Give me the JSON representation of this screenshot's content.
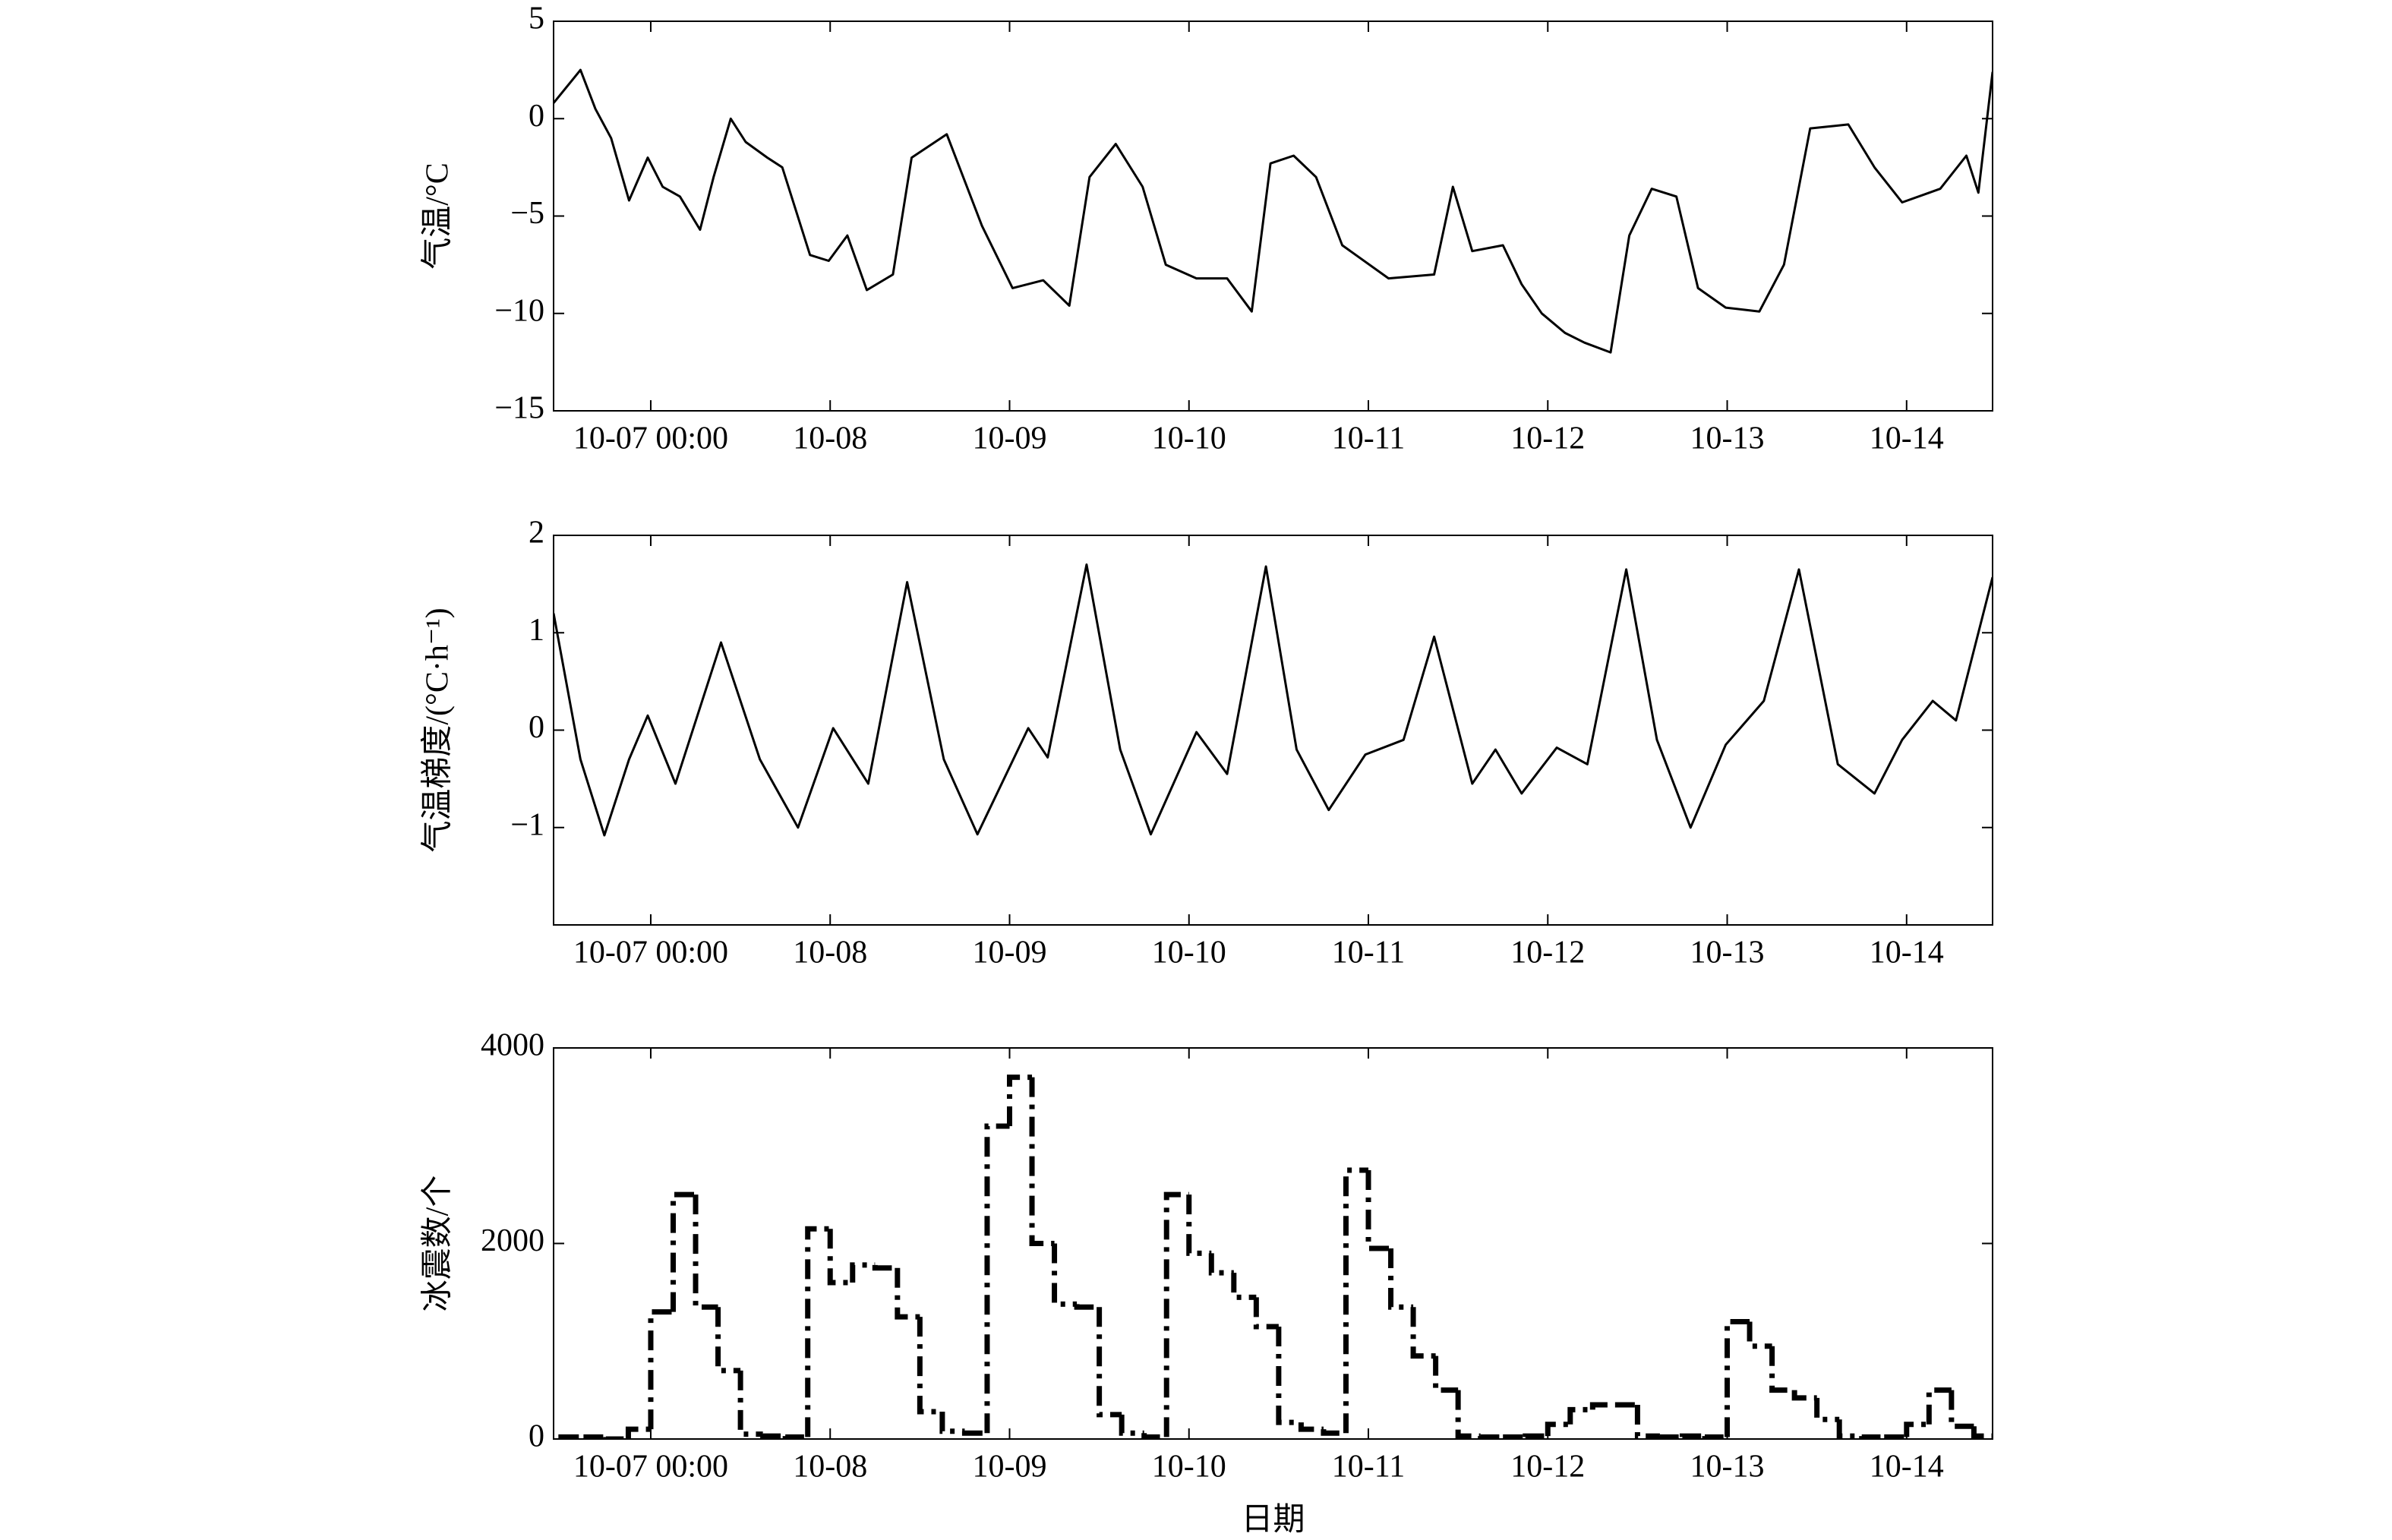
{
  "chart_data": [
    {
      "type": "line",
      "ylabel": "气温/°C",
      "color": "#000000",
      "x": [
        -13,
        -9.4,
        -7.4,
        -5.3,
        -2.9,
        -0.4,
        1.6,
        3.9,
        6.6,
        8.4,
        10.7,
        12.7,
        15.6,
        17.6,
        21.3,
        23.8,
        26.3,
        28.9,
        32.4,
        34.9,
        39.6,
        44.3,
        48.4,
        52.5,
        56,
        58.7,
        62.2,
        65.8,
        68.9,
        73,
        77.1,
        80.4,
        82.9,
        86,
        89,
        92.5,
        98.7,
        104.8,
        107.3,
        109.9,
        114,
        116.5,
        119.2,
        122.3,
        124.9,
        128.4,
        130.9,
        133.9,
        137.2,
        140.1,
        143.8,
        148.3,
        151.6,
        155.1,
        160.2,
        163.7,
        167.4,
        172.5,
        176,
        177.6,
        179.5
      ],
      "values": [
        0.8,
        2.5,
        0.5,
        -1,
        -4.2,
        -2,
        -3.5,
        -4,
        -5.7,
        -3,
        0,
        -1.2,
        -2,
        -2.5,
        -7,
        -7.3,
        -6,
        -8.8,
        -8,
        -2,
        -0.8,
        -5.5,
        -8.7,
        -8.3,
        -9.6,
        -3,
        -1.3,
        -3.5,
        -7.5,
        -8.2,
        -8.2,
        -9.9,
        -2.3,
        -1.9,
        -3,
        -6.5,
        -8.2,
        -8,
        -3.5,
        -6.8,
        -6.5,
        -8.5,
        -10,
        -11,
        -11.5,
        -12,
        -6,
        -3.6,
        -4,
        -8.7,
        -9.7,
        -9.9,
        -7.5,
        -0.5,
        -0.3,
        -2.5,
        -4.3,
        -3.6,
        -1.9,
        -3.8,
        2.4
      ],
      "xlim": [
        -13,
        179.5
      ],
      "xticks": [
        {
          "value": 0,
          "label": "10-07 00:00"
        },
        {
          "value": 24,
          "label": "10-08"
        },
        {
          "value": 48,
          "label": "10-09"
        },
        {
          "value": 72,
          "label": "10-10"
        },
        {
          "value": 96,
          "label": "10-11"
        },
        {
          "value": 120,
          "label": "10-12"
        },
        {
          "value": 144,
          "label": "10-13"
        },
        {
          "value": 168,
          "label": "10-14"
        }
      ],
      "ylim": [
        -15,
        5
      ],
      "yticks": [
        {
          "value": -15,
          "label": "−15"
        },
        {
          "value": -10,
          "label": "−10"
        },
        {
          "value": -5,
          "label": "−5"
        },
        0,
        5
      ]
    },
    {
      "type": "line",
      "ylabel": "气温梯度/(°C·h⁻¹)",
      "color": "#000000",
      "x": [
        -13,
        -9.4,
        -6.2,
        -2.9,
        -0.4,
        3.3,
        9.4,
        14.6,
        19.7,
        24.4,
        29.1,
        34.3,
        39.2,
        43.7,
        50.5,
        53.1,
        58.3,
        62.8,
        66.9,
        73,
        77.1,
        82.3,
        86.4,
        90.7,
        95.6,
        100.7,
        104.8,
        109.9,
        113,
        116.5,
        121.2,
        125.3,
        130.5,
        134.6,
        139.1,
        143.8,
        148.9,
        153.6,
        158.8,
        163.7,
        167.4,
        171.5,
        174.6,
        179.5
      ],
      "values": [
        1.2,
        -0.3,
        -1.08,
        -0.3,
        0.15,
        -0.55,
        0.9,
        -0.3,
        -1,
        0.02,
        -0.55,
        1.52,
        -0.3,
        -1.07,
        0.02,
        -0.28,
        1.7,
        -0.2,
        -1.07,
        -0.02,
        -0.45,
        1.68,
        -0.2,
        -0.82,
        -0.25,
        -0.1,
        0.96,
        -0.55,
        -0.2,
        -0.65,
        -0.18,
        -0.35,
        1.65,
        -0.1,
        -1,
        -0.15,
        0.3,
        1.65,
        -0.35,
        -0.65,
        -0.1,
        0.3,
        0.1,
        1.57
      ],
      "xlim": [
        -13,
        179.5
      ],
      "xticks": [
        {
          "value": 0,
          "label": "10-07 00:00"
        },
        {
          "value": 24,
          "label": "10-08"
        },
        {
          "value": 48,
          "label": "10-09"
        },
        {
          "value": 72,
          "label": "10-10"
        },
        {
          "value": 96,
          "label": "10-11"
        },
        {
          "value": 120,
          "label": "10-12"
        },
        {
          "value": 144,
          "label": "10-13"
        },
        {
          "value": 168,
          "label": "10-14"
        }
      ],
      "ylim": [
        -2,
        2
      ],
      "yticks": [
        {
          "value": -1,
          "label": "−1"
        },
        0,
        1,
        2
      ]
    },
    {
      "type": "histogram",
      "ylabel": "冰震数/个",
      "xlabel": "日期",
      "color": "#000000",
      "bins": [
        -12,
        -9,
        -6,
        -3,
        0,
        3,
        6,
        9,
        12,
        15,
        18,
        21,
        24,
        27,
        30,
        33,
        36,
        39,
        42,
        45,
        48,
        51,
        54,
        57,
        60,
        63,
        66,
        69,
        72,
        75,
        78,
        81,
        84,
        87,
        90,
        93,
        96,
        99,
        102,
        105,
        108,
        111,
        114,
        117,
        120,
        123,
        126,
        129,
        132,
        135,
        138,
        141,
        144,
        147,
        150,
        153,
        156,
        159,
        162,
        165,
        168,
        171,
        174,
        177,
        180
      ],
      "values": [
        20,
        20,
        0,
        100,
        1300,
        2500,
        1350,
        700,
        50,
        30,
        20,
        2150,
        1600,
        1780,
        1750,
        1250,
        280,
        80,
        60,
        3200,
        3700,
        2000,
        1380,
        1350,
        250,
        60,
        20,
        2500,
        1900,
        1700,
        1450,
        1150,
        170,
        100,
        60,
        2750,
        1950,
        1350,
        850,
        500,
        30,
        20,
        20,
        30,
        150,
        300,
        350,
        350,
        30,
        20,
        30,
        20,
        1200,
        950,
        500,
        420,
        200,
        30,
        20,
        20,
        150,
        500,
        130,
        30
      ],
      "xlim": [
        -13,
        179.5
      ],
      "xticks": [
        {
          "value": 0,
          "label": "10-07 00:00"
        },
        {
          "value": 24,
          "label": "10-08"
        },
        {
          "value": 48,
          "label": "10-09"
        },
        {
          "value": 72,
          "label": "10-10"
        },
        {
          "value": 96,
          "label": "10-11"
        },
        {
          "value": 120,
          "label": "10-12"
        },
        {
          "value": 144,
          "label": "10-13"
        },
        {
          "value": 168,
          "label": "10-14"
        }
      ],
      "ylim": [
        0,
        4000
      ],
      "yticks": [
        0,
        2000,
        4000
      ]
    }
  ]
}
